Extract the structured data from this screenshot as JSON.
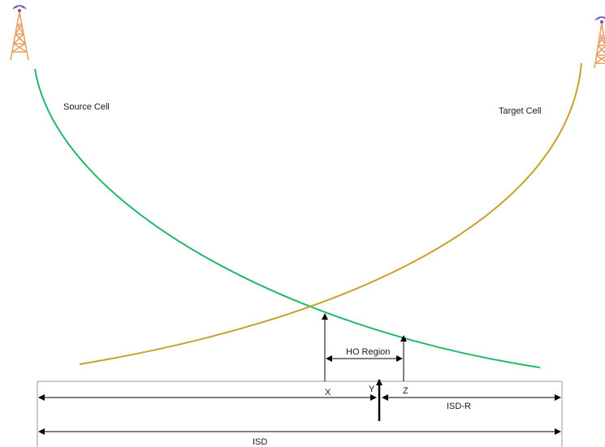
{
  "labels": {
    "source_cell": "Source Cell",
    "target_cell": "Target Cell",
    "ho_region": "HO Region",
    "x": "X",
    "y": "Y",
    "z": "Z",
    "isd_r": "ISD-R",
    "isd": "ISD"
  },
  "icons": {
    "source_tower": "cell-tower-icon",
    "target_tower": "cell-tower-icon"
  },
  "colors": {
    "source_curve": "#21b86a",
    "target_curve": "#c8a02a",
    "tower_body": "#e6a060",
    "tower_signal": "#6a5aa8",
    "lines": "#000000"
  }
}
